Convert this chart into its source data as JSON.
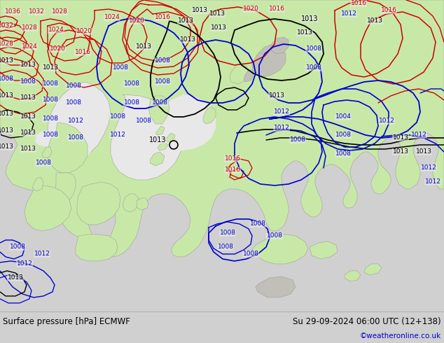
{
  "title_left": "Surface pressure [hPa] ECMWF",
  "title_right": "Su 29-09-2024 06:00 UTC (12+138)",
  "credit": "©weatheronline.co.uk",
  "fig_width": 6.34,
  "fig_height": 4.9,
  "dpi": 100,
  "ocean_color": "#e8e8e8",
  "land_green": "#c8e8a8",
  "land_gray": "#c0c0b8",
  "bottom_bar": "#d0d0d0",
  "blue": "#0000cc",
  "red": "#cc0000",
  "black": "#000000",
  "label_bg": "none"
}
